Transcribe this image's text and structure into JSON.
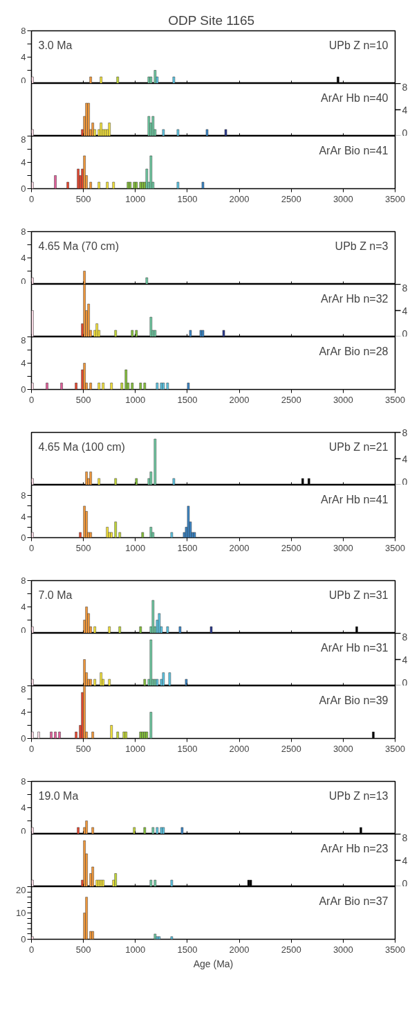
{
  "chart_data": [
    {
      "type": "bar",
      "title": "ODP  Site 1165",
      "annotations": [
        "3.0 Ma",
        "UPb Z n=10"
      ],
      "tick_labels": "y",
      "xlim": [
        0,
        3500
      ],
      "xticks": [
        0,
        500,
        1000,
        1500,
        2000,
        2500,
        3000,
        3500
      ],
      "ylim": [
        0,
        8
      ],
      "yticks": [
        0,
        {
          "value": 2,
          "label": null
        },
        4,
        {
          "value": 6,
          "label": null
        },
        8
      ],
      "x": [
        10,
        570,
        670,
        830,
        1130,
        1150,
        1190,
        1210,
        1370,
        2950
      ],
      "values": [
        1,
        1,
        1,
        1,
        1,
        1,
        2,
        1,
        1,
        1
      ],
      "colors": [
        "#f7d9e3",
        "#f39a3d",
        "#f6e43a",
        "#c5d93a",
        "#6fcba3",
        "#6fcba3",
        "#6fcba3",
        "#5dc6e4",
        "#5dc6e4",
        "#000000"
      ]
    },
    {
      "type": "bar",
      "annotations": [
        "ArAr Hb n=40"
      ],
      "tick_labels": "y",
      "xlim": [
        0,
        3500
      ],
      "xticks": [
        0,
        500,
        1000,
        1500,
        2000,
        2500,
        3000,
        3500
      ],
      "y2lim": [
        0,
        8
      ],
      "y2ticks": [
        0,
        4,
        8
      ],
      "x": [
        10,
        490,
        510,
        530,
        550,
        570,
        590,
        610,
        650,
        670,
        690,
        710,
        730,
        750,
        1130,
        1150,
        1170,
        1190,
        1270,
        1410,
        1690,
        1870
      ],
      "colors": [
        "#f7d9e3",
        "#e8472f",
        "#f39a3d",
        "#f39a3d",
        "#f39a3d",
        "#f39a3d",
        "#f39a3d",
        "#f6e43a",
        "#f6e43a",
        "#f6e43a",
        "#f6e43a",
        "#f6e43a",
        "#f6e43a",
        "#f6e43a",
        "#6fcba3",
        "#6fcba3",
        "#6fcba3",
        "#6fcba3",
        "#5dc6e4",
        "#5dc6e4",
        "#3b86c6",
        "#2b3a8e"
      ],
      "series": [
        {
          "axis": "y2",
          "values": [
            1,
            1,
            3,
            5,
            5,
            1,
            2,
            1,
            1,
            2,
            1,
            1,
            1,
            2,
            3,
            2,
            3,
            1,
            1,
            1,
            1,
            1
          ]
        }
      ]
    },
    {
      "type": "bar",
      "annotations": [
        "ArAr Bio n=41"
      ],
      "xlim": [
        0,
        3500
      ],
      "xticks": [
        0,
        500,
        1000,
        1500,
        2000,
        2500,
        3000,
        3500
      ],
      "ylim": [
        0,
        8
      ],
      "yticks": [
        0,
        {
          "value": 2,
          "label": null
        },
        4,
        {
          "value": 6,
          "label": null
        },
        8
      ],
      "x": [
        10,
        230,
        350,
        450,
        470,
        490,
        510,
        530,
        570,
        650,
        730,
        790,
        930,
        950,
        990,
        1010,
        1050,
        1070,
        1090,
        1110,
        1130,
        1150,
        1170,
        1410,
        1650
      ],
      "values": [
        1,
        2,
        1,
        3,
        2,
        3,
        5,
        2,
        1,
        1,
        1,
        1,
        1,
        1,
        1,
        1,
        1,
        1,
        1,
        3,
        1,
        5,
        1,
        1,
        1
      ],
      "colors": [
        "#f7d9e3",
        "#e2609b",
        "#e8472f",
        "#e8472f",
        "#e8472f",
        "#e8472f",
        "#f39a3d",
        "#f39a3d",
        "#f39a3d",
        "#f6e43a",
        "#f6e43a",
        "#f6e43a",
        "#86c23c",
        "#86c23c",
        "#86c23c",
        "#86c23c",
        "#86c23c",
        "#86c23c",
        "#86c23c",
        "#6fcba3",
        "#6fcba3",
        "#6fcba3",
        "#6fcba3",
        "#5dc6e4",
        "#3b86c6"
      ]
    },
    {
      "type": "bar",
      "annotations": [
        "4.65 Ma (70 cm)",
        "UPb Z n=3"
      ],
      "tick_labels": "y",
      "xlim": [
        0,
        3500
      ],
      "xticks": [
        0,
        500,
        1000,
        1500,
        2000,
        2500,
        3000,
        3500
      ],
      "ylim": [
        0,
        8
      ],
      "yticks": [
        0,
        {
          "value": 2,
          "label": null
        },
        4,
        {
          "value": 6,
          "label": null
        },
        8
      ],
      "x": [
        10,
        510,
        1110
      ],
      "values": [
        1,
        2,
        1
      ],
      "colors": [
        "#f7d9e3",
        "#f39a3d",
        "#6fcba3"
      ]
    },
    {
      "type": "bar",
      "annotations": [
        "ArAr Hb n=32"
      ],
      "tick_labels": "y",
      "xlim": [
        0,
        3500
      ],
      "xticks": [
        0,
        500,
        1000,
        1500,
        2000,
        2500,
        3000,
        3500
      ],
      "y2lim": [
        0,
        8
      ],
      "y2ticks": [
        0,
        4,
        8
      ],
      "x": [
        10,
        490,
        510,
        530,
        550,
        570,
        610,
        630,
        650,
        810,
        970,
        1010,
        1150,
        1170,
        1190,
        1530,
        1630,
        1650,
        1850
      ],
      "colors": [
        "#f7d9e3",
        "#e8472f",
        "#f39a3d",
        "#f39a3d",
        "#f39a3d",
        "#f39a3d",
        "#f6e43a",
        "#f6e43a",
        "#f6e43a",
        "#c5d93a",
        "#86c23c",
        "#86c23c",
        "#6fcba3",
        "#6fcba3",
        "#6fcba3",
        "#3b86c6",
        "#3b86c6",
        "#3b86c6",
        "#2b3a8e"
      ],
      "series": [
        {
          "axis": "y2",
          "values": [
            4,
            2,
            8,
            4,
            5,
            1,
            1,
            2,
            1,
            1,
            1,
            1,
            3,
            1,
            1,
            1,
            1,
            1,
            1
          ]
        }
      ]
    },
    {
      "type": "bar",
      "annotations": [
        "ArAr Bio n=28"
      ],
      "xlim": [
        0,
        3500
      ],
      "xticks": [
        0,
        500,
        1000,
        1500,
        2000,
        2500,
        3000,
        3500
      ],
      "ylim": [
        0,
        8
      ],
      "yticks": [
        0,
        {
          "value": 2,
          "label": null
        },
        4,
        {
          "value": 6,
          "label": null
        },
        8
      ],
      "x": [
        10,
        150,
        290,
        430,
        490,
        510,
        530,
        570,
        650,
        690,
        770,
        870,
        910,
        930,
        970,
        1050,
        1090,
        1210,
        1250,
        1270,
        1310,
        1510
      ],
      "values": [
        1,
        1,
        1,
        1,
        3,
        4,
        1,
        1,
        1,
        1,
        1,
        1,
        3,
        1,
        1,
        1,
        1,
        1,
        1,
        1,
        1,
        1
      ],
      "colors": [
        "#f7d9e3",
        "#e2609b",
        "#e2609b",
        "#e8472f",
        "#e8472f",
        "#f39a3d",
        "#f39a3d",
        "#f39a3d",
        "#f6e43a",
        "#f6e43a",
        "#f6e43a",
        "#c5d93a",
        "#86c23c",
        "#86c23c",
        "#86c23c",
        "#86c23c",
        "#86c23c",
        "#5dc6e4",
        "#5dc6e4",
        "#5dc6e4",
        "#5dc6e4",
        "#3b86c6"
      ]
    },
    {
      "type": "bar",
      "annotations": [
        "4.65 Ma (100 cm)",
        "UPb Z n=21"
      ],
      "tick_labels": "y",
      "xlim": [
        0,
        3500
      ],
      "xticks": [
        0,
        500,
        1000,
        1500,
        2000,
        2500,
        3000,
        3500
      ],
      "y2lim": [
        0,
        8
      ],
      "y2ticks": [
        0,
        4,
        8
      ],
      "x": [
        10,
        530,
        550,
        570,
        650,
        810,
        1010,
        1130,
        1150,
        1190,
        1370,
        2610,
        2670
      ],
      "colors": [
        "#f7d9e3",
        "#f39a3d",
        "#f39a3d",
        "#f39a3d",
        "#f6e43a",
        "#c5d93a",
        "#86c23c",
        "#6fcba3",
        "#6fcba3",
        "#6fcba3",
        "#5dc6e4",
        "#000000",
        "#000000"
      ],
      "series": [
        {
          "axis": "y2",
          "values": [
            1,
            2,
            1,
            2,
            1,
            1,
            1,
            1,
            2,
            7,
            1,
            1,
            1
          ]
        }
      ]
    },
    {
      "type": "bar",
      "annotations": [
        "ArAr Hb n=41"
      ],
      "xlim": [
        0,
        3500
      ],
      "xticks": [
        0,
        500,
        1000,
        1500,
        2000,
        2500,
        3000,
        3500
      ],
      "ylim": [
        0,
        10
      ],
      "yticks": [
        0,
        {
          "value": 2,
          "label": null
        },
        4,
        {
          "value": 6,
          "label": null
        },
        8
      ],
      "x": [
        10,
        470,
        510,
        530,
        550,
        570,
        730,
        750,
        770,
        810,
        850,
        1070,
        1150,
        1170,
        1350,
        1470,
        1490,
        1510,
        1530,
        1550,
        1570
      ],
      "values": [
        1,
        1,
        6,
        5,
        1,
        1,
        2,
        1,
        1,
        3,
        1,
        1,
        2,
        1,
        1,
        1,
        2,
        6,
        3,
        1,
        1
      ],
      "colors": [
        "#f7d9e3",
        "#e8472f",
        "#f39a3d",
        "#f39a3d",
        "#f39a3d",
        "#f39a3d",
        "#f6e43a",
        "#f6e43a",
        "#f6e43a",
        "#c5d93a",
        "#c5d93a",
        "#86c23c",
        "#6fcba3",
        "#6fcba3",
        "#5dc6e4",
        "#3b86c6",
        "#3b86c6",
        "#3b86c6",
        "#3b86c6",
        "#3b86c6",
        "#3b86c6"
      ]
    },
    {
      "type": "bar",
      "annotations": [
        "7.0 Ma",
        "UPb Z n=31"
      ],
      "tick_labels": "y",
      "xlim": [
        0,
        3500
      ],
      "xticks": [
        0,
        500,
        1000,
        1500,
        2000,
        2500,
        3000,
        3500
      ],
      "ylim": [
        0,
        8
      ],
      "yticks": [
        0,
        {
          "value": 2,
          "label": null
        },
        4,
        {
          "value": 6,
          "label": null
        },
        8
      ],
      "x": [
        10,
        510,
        530,
        550,
        570,
        610,
        750,
        850,
        1050,
        1150,
        1170,
        1190,
        1210,
        1230,
        1250,
        1310,
        1430,
        1730,
        3130
      ],
      "values": [
        1,
        2,
        4,
        3,
        1,
        1,
        1,
        1,
        1,
        1,
        5,
        1,
        2,
        3,
        1,
        1,
        1,
        1,
        1
      ],
      "colors": [
        "#f7d9e3",
        "#f39a3d",
        "#f39a3d",
        "#f39a3d",
        "#f39a3d",
        "#f6e43a",
        "#f6e43a",
        "#c5d93a",
        "#86c23c",
        "#6fcba3",
        "#6fcba3",
        "#6fcba3",
        "#5dc6e4",
        "#5dc6e4",
        "#5dc6e4",
        "#5dc6e4",
        "#3b86c6",
        "#2b3a8e",
        "#000000"
      ]
    },
    {
      "type": "bar",
      "annotations": [
        "ArAr Hb n=31"
      ],
      "tick_labels": "y",
      "xlim": [
        0,
        3500
      ],
      "xticks": [
        0,
        500,
        1000,
        1500,
        2000,
        2500,
        3000,
        3500
      ],
      "y2lim": [
        0,
        8
      ],
      "y2ticks": [
        0,
        4,
        8
      ],
      "x": [
        10,
        510,
        530,
        550,
        570,
        610,
        670,
        690,
        750,
        1090,
        1130,
        1150,
        1170,
        1190,
        1210,
        1250,
        1270,
        1330,
        1490
      ],
      "colors": [
        "#f7d9e3",
        "#f39a3d",
        "#f39a3d",
        "#f39a3d",
        "#f39a3d",
        "#f6e43a",
        "#f6e43a",
        "#f6e43a",
        "#f6e43a",
        "#86c23c",
        "#6fcba3",
        "#6fcba3",
        "#6fcba3",
        "#6fcba3",
        "#5dc6e4",
        "#5dc6e4",
        "#5dc6e4",
        "#5dc6e4",
        "#3b86c6"
      ],
      "series": [
        {
          "axis": "y2",
          "values": [
            1,
            4,
            2,
            1,
            1,
            1,
            2,
            1,
            1,
            1,
            1,
            7,
            1,
            1,
            1,
            1,
            2,
            2,
            1
          ]
        }
      ]
    },
    {
      "type": "bar",
      "annotations": [
        "ArAr Bio n=39"
      ],
      "xlim": [
        0,
        3500
      ],
      "xticks": [
        0,
        500,
        1000,
        1500,
        2000,
        2500,
        3000,
        3500
      ],
      "ylim": [
        0,
        8
      ],
      "yticks": [
        0,
        {
          "value": 2,
          "label": null
        },
        4,
        {
          "value": 6,
          "label": null
        },
        8
      ],
      "x": [
        10,
        70,
        190,
        230,
        270,
        430,
        470,
        490,
        510,
        530,
        590,
        770,
        830,
        890,
        910,
        1050,
        1070,
        1090,
        1110,
        1150,
        3290
      ],
      "values": [
        1,
        1,
        1,
        1,
        1,
        1,
        2,
        7,
        8,
        1,
        1,
        2,
        1,
        1,
        1,
        1,
        1,
        1,
        1,
        4,
        1
      ],
      "colors": [
        "#f7d9e3",
        "#f7d9e3",
        "#e2609b",
        "#e2609b",
        "#e2609b",
        "#e8472f",
        "#e8472f",
        "#e8472f",
        "#f39a3d",
        "#f39a3d",
        "#f39a3d",
        "#f6e43a",
        "#c5d93a",
        "#c5d93a",
        "#c5d93a",
        "#86c23c",
        "#86c23c",
        "#86c23c",
        "#86c23c",
        "#6fcba3",
        "#000000"
      ]
    },
    {
      "type": "bar",
      "annotations": [
        "19.0 Ma",
        "UPb Z n=13"
      ],
      "tick_labels": "y",
      "xlim": [
        0,
        3500
      ],
      "xticks": [
        0,
        500,
        1000,
        1500,
        2000,
        2500,
        3000,
        3500
      ],
      "ylim": [
        0,
        8
      ],
      "yticks": [
        0,
        {
          "value": 2,
          "label": null
        },
        4,
        {
          "value": 6,
          "label": null
        },
        8
      ],
      "x": [
        10,
        450,
        510,
        530,
        590,
        990,
        1090,
        1170,
        1210,
        1250,
        1270,
        1450,
        3170
      ],
      "values": [
        1,
        1,
        1,
        2,
        1,
        1,
        1,
        1,
        1,
        1,
        1,
        1,
        1
      ],
      "colors": [
        "#f7d9e3",
        "#e8472f",
        "#f39a3d",
        "#f39a3d",
        "#f39a3d",
        "#c5d93a",
        "#86c23c",
        "#6fcba3",
        "#5dc6e4",
        "#5dc6e4",
        "#5dc6e4",
        "#3b86c6",
        "#000000"
      ]
    },
    {
      "type": "bar",
      "annotations": [
        "ArAr Hb n=23"
      ],
      "tick_labels": "y",
      "xlim": [
        0,
        3500
      ],
      "xticks": [
        0,
        500,
        1000,
        1500,
        2000,
        2500,
        3000,
        3500
      ],
      "y2lim": [
        0,
        8
      ],
      "y2ticks": [
        0,
        4,
        8
      ],
      "x": [
        10,
        490,
        510,
        530,
        570,
        590,
        630,
        650,
        670,
        690,
        790,
        810,
        1150,
        1190,
        1350,
        2090,
        2110
      ],
      "colors": [
        "#f7d9e3",
        "#e8472f",
        "#f39a3d",
        "#f39a3d",
        "#f39a3d",
        "#f39a3d",
        "#f6e43a",
        "#f6e43a",
        "#f6e43a",
        "#f6e43a",
        "#f6e43a",
        "#c5d93a",
        "#6fcba3",
        "#6fcba3",
        "#5dc6e4",
        "#000000",
        "#000000"
      ],
      "series": [
        {
          "axis": "y2",
          "values": [
            1,
            1,
            7,
            5,
            2,
            3,
            1,
            1,
            1,
            1,
            1,
            2,
            1,
            1,
            1,
            1,
            1
          ]
        }
      ]
    },
    {
      "type": "bar",
      "annotations": [
        "ArAr Bio n=37"
      ],
      "xlabel": "Age (Ma)",
      "xlim": [
        0,
        3500
      ],
      "xticks": [
        0,
        500,
        1000,
        1500,
        2000,
        2500,
        3000,
        3500
      ],
      "ylim": [
        0,
        20
      ],
      "yticks": [
        0,
        {
          "value": 2,
          "label": null
        },
        {
          "value": 4,
          "label": null
        },
        {
          "value": 6,
          "label": null
        },
        {
          "value": 8,
          "label": null
        },
        10,
        {
          "value": 12,
          "label": null
        },
        {
          "value": 14,
          "label": null
        },
        {
          "value": 16,
          "label": null
        },
        {
          "value": 18,
          "label": null
        },
        20
      ],
      "x": [
        10,
        510,
        530,
        570,
        590,
        1190,
        1210,
        1230,
        1350
      ],
      "values": [
        1,
        10,
        16,
        3,
        3,
        2,
        1,
        1,
        1
      ],
      "colors": [
        "#f7d9e3",
        "#f39a3d",
        "#f39a3d",
        "#f39a3d",
        "#f39a3d",
        "#6fcba3",
        "#5dc6e4",
        "#5dc6e4",
        "#5dc6e4"
      ]
    }
  ]
}
